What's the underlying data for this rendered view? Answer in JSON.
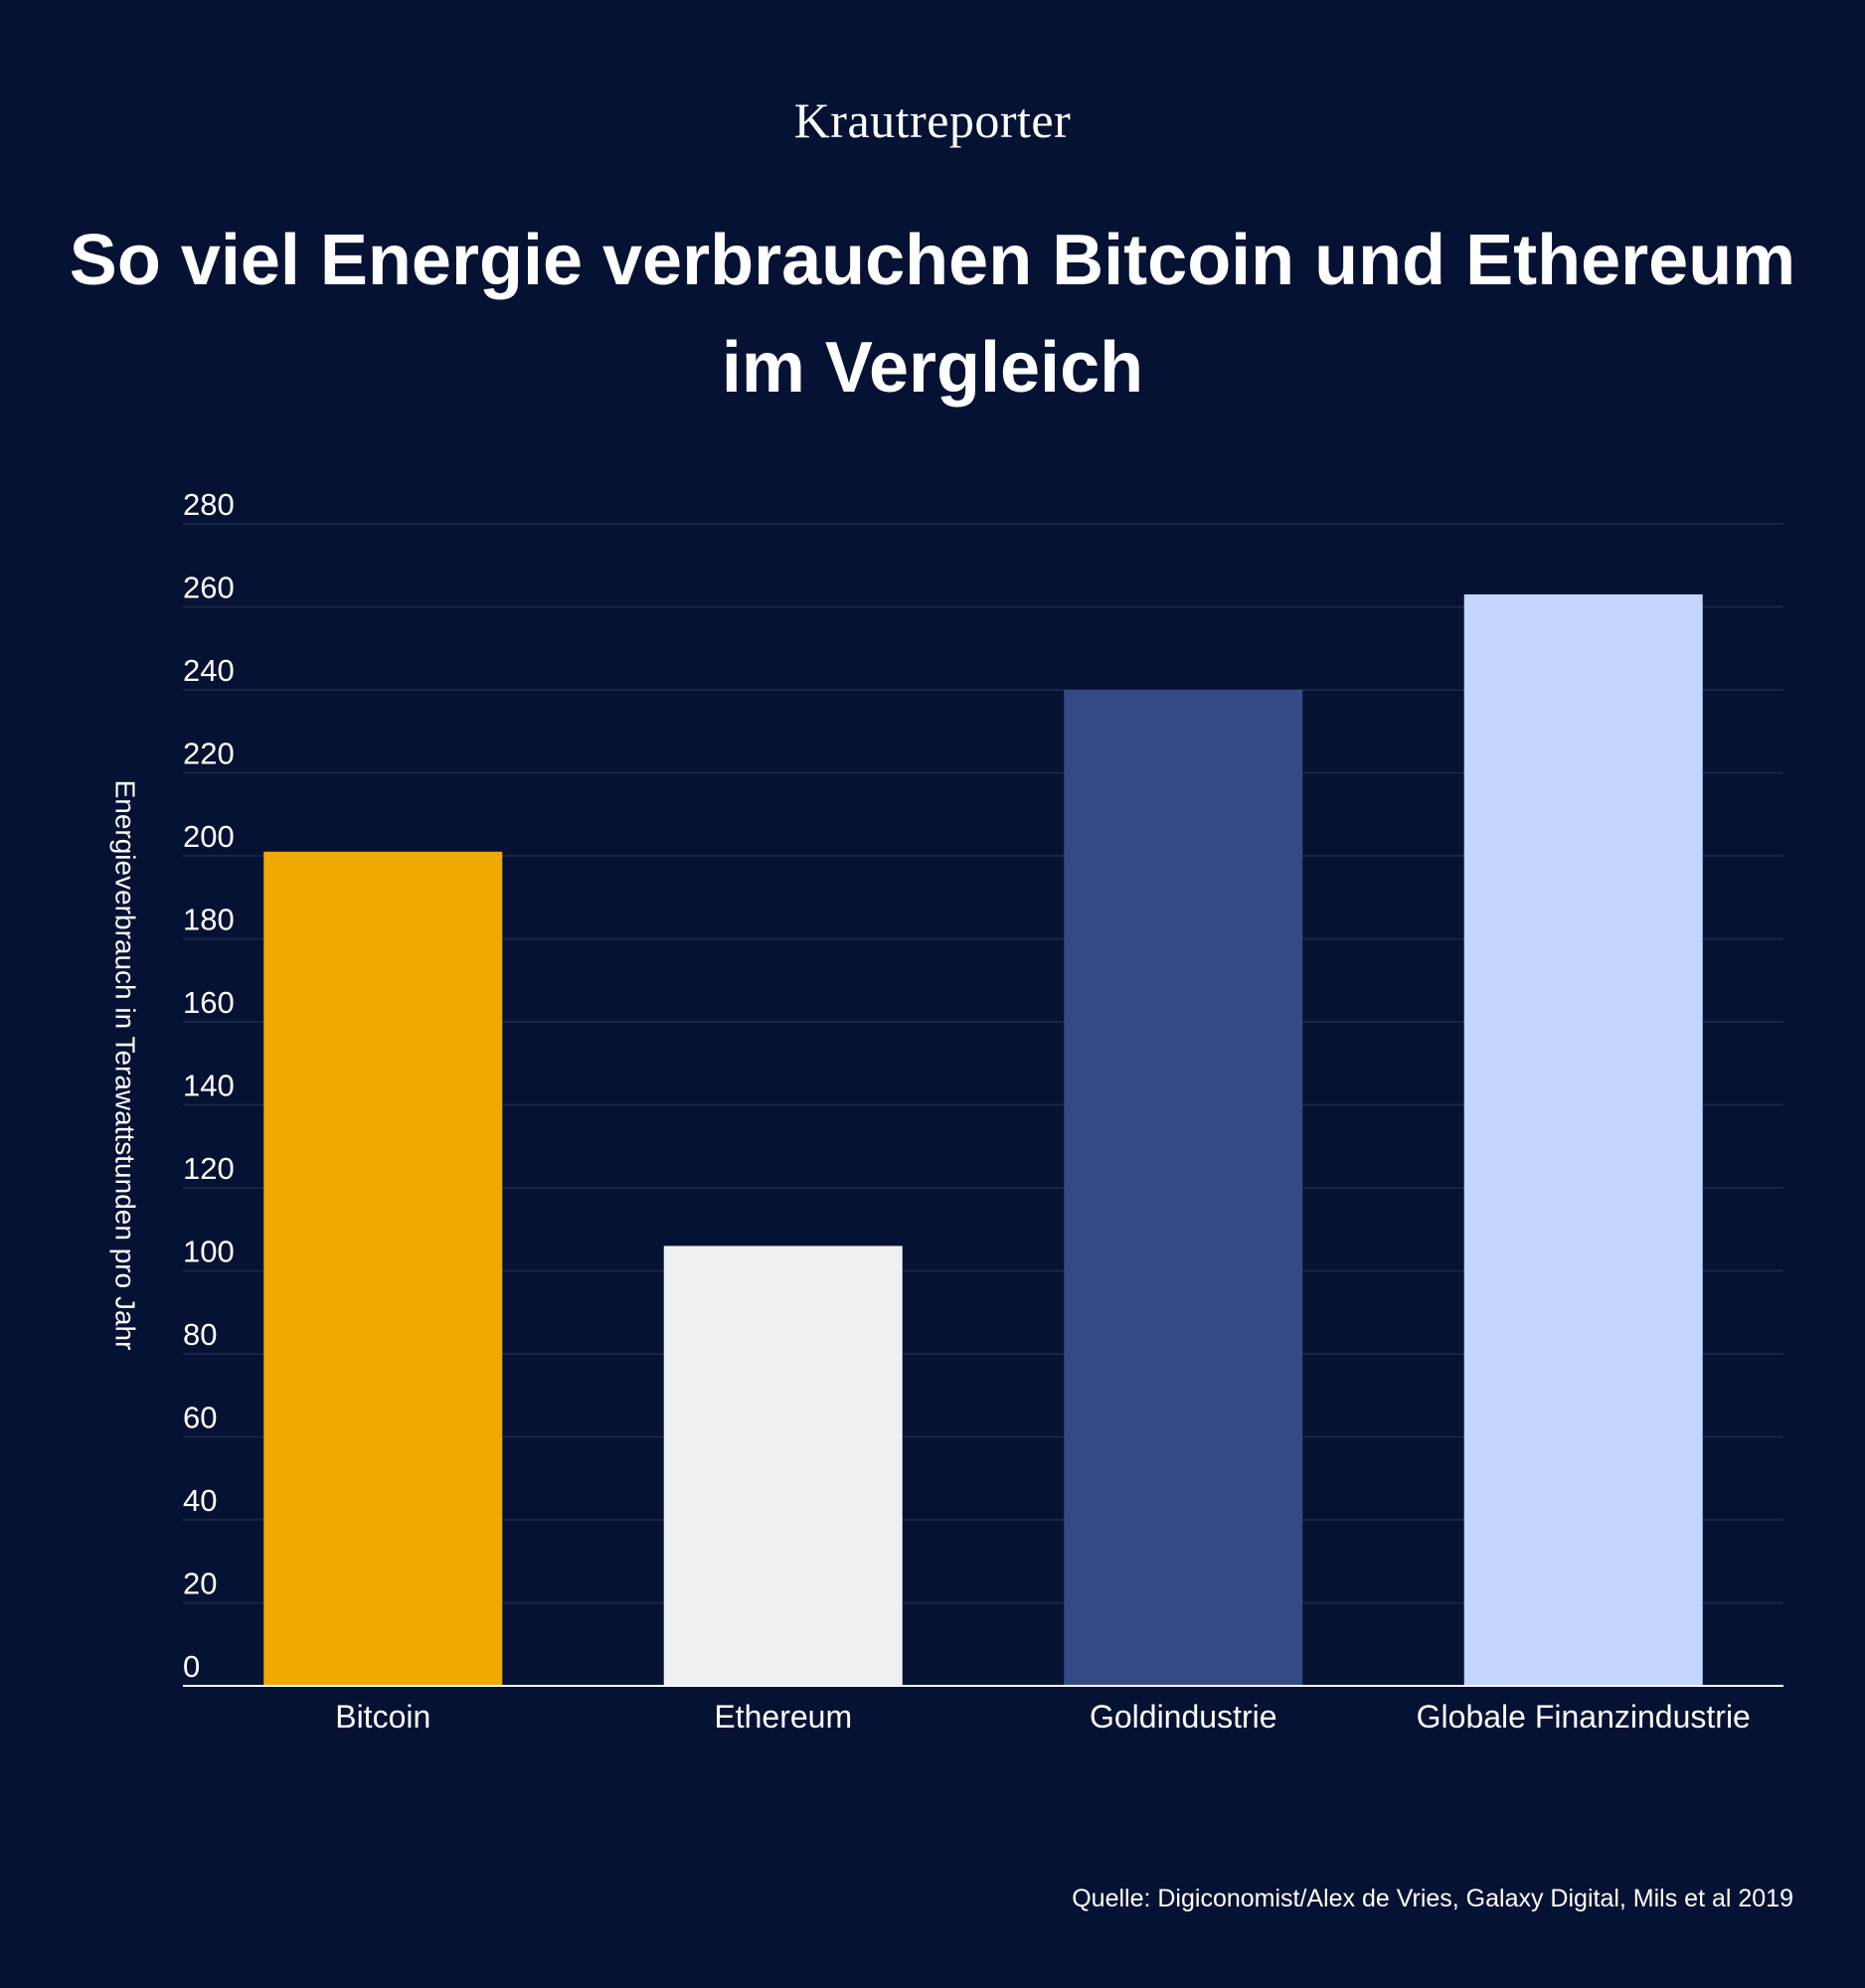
{
  "brand": "Krautreporter",
  "title": "So viel Energie verbrauchen Bitcoin und Ethereum im Vergleich",
  "source": "Quelle: Digiconomist/Alex de Vries, Galaxy Digital, Mils et al 2019",
  "colors": {
    "background": "#061233",
    "gridline": "#1f2a4d",
    "axis": "#ffffff",
    "text": "#ffffff"
  },
  "chart_data": {
    "type": "bar",
    "categories": [
      "Bitcoin",
      "Ethereum",
      "Goldindustrie",
      "Globale Finanzindustrie"
    ],
    "values": [
      201,
      106,
      240,
      263
    ],
    "bar_colors": [
      "#f0a900",
      "#edf1f2",
      "#354a85",
      "#c4d5ff"
    ],
    "xlabel": "",
    "ylabel": "Energieverbrauch in Terawattstunden pro Jahr",
    "ylim": [
      0,
      280
    ],
    "yticks": [
      0,
      20,
      40,
      60,
      80,
      100,
      120,
      140,
      160,
      180,
      200,
      220,
      240,
      260,
      280
    ],
    "grid": true,
    "legend": false
  }
}
